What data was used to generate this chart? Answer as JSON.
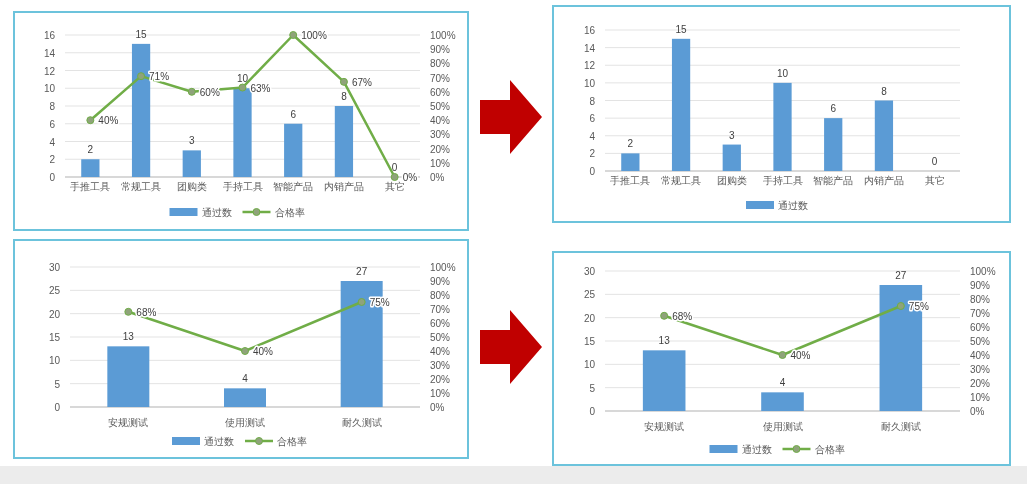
{
  "chart_data": [
    {
      "type": "bar",
      "categories": [
        "手推工具",
        "常规工具",
        "团购类",
        "手持工具",
        "智能产品",
        "内销产品",
        "其它"
      ],
      "ylim": [
        0,
        16
      ],
      "yticks": [
        0,
        2,
        4,
        6,
        8,
        10,
        12,
        14,
        16
      ],
      "y2lim": [
        0,
        100
      ],
      "y2ticks": [
        {
          "value": 0,
          "label": "0%"
        },
        {
          "value": 10,
          "label": "10%"
        },
        {
          "value": 20,
          "label": "20%"
        },
        {
          "value": 30,
          "label": "30%"
        },
        {
          "value": 40,
          "label": "40%"
        },
        {
          "value": 50,
          "label": "50%"
        },
        {
          "value": 60,
          "label": "60%"
        },
        {
          "value": 70,
          "label": "70%"
        },
        {
          "value": 80,
          "label": "80%"
        },
        {
          "value": 90,
          "label": "90%"
        },
        {
          "value": 100,
          "label": "100%"
        }
      ],
      "grid": "y",
      "legend": "bottom",
      "data_labels": true,
      "marker": "circle",
      "series": [
        {
          "name": "通过数",
          "color": "#5b9bd5",
          "values": [
            2,
            15,
            3,
            10,
            6,
            8,
            0
          ]
        },
        {
          "name": "合格率",
          "type": "line",
          "axis": "y2",
          "color": "#70ad47",
          "values": [
            40,
            71,
            60,
            63,
            100,
            67,
            0
          ],
          "value_labels": [
            "40%",
            "71%",
            "60%",
            "63%",
            "100%",
            "67%",
            "0%"
          ]
        }
      ]
    },
    {
      "type": "bar",
      "categories": [
        "手推工具",
        "常规工具",
        "团购类",
        "手持工具",
        "智能产品",
        "内销产品",
        "其它"
      ],
      "ylim": [
        0,
        16
      ],
      "yticks": [
        0,
        2,
        4,
        6,
        8,
        10,
        12,
        14,
        16
      ],
      "grid": "y",
      "legend": "bottom",
      "data_labels": true,
      "series": [
        {
          "name": "通过数",
          "color": "#5b9bd5",
          "values": [
            2,
            15,
            3,
            10,
            6,
            8,
            0
          ]
        }
      ]
    },
    {
      "type": "bar",
      "categories": [
        "安规测试",
        "使用测试",
        "耐久测试"
      ],
      "ylim": [
        0,
        30
      ],
      "yticks": [
        0,
        5,
        10,
        15,
        20,
        25,
        30
      ],
      "y2lim": [
        0,
        100
      ],
      "y2ticks": [
        {
          "value": 0,
          "label": "0%"
        },
        {
          "value": 10,
          "label": "10%"
        },
        {
          "value": 20,
          "label": "20%"
        },
        {
          "value": 30,
          "label": "30%"
        },
        {
          "value": 40,
          "label": "40%"
        },
        {
          "value": 50,
          "label": "50%"
        },
        {
          "value": 60,
          "label": "60%"
        },
        {
          "value": 70,
          "label": "70%"
        },
        {
          "value": 80,
          "label": "80%"
        },
        {
          "value": 90,
          "label": "90%"
        },
        {
          "value": 100,
          "label": "100%"
        }
      ],
      "grid": "y",
      "legend": "bottom",
      "data_labels": true,
      "marker": "circle",
      "series": [
        {
          "name": "通过数",
          "color": "#5b9bd5",
          "values": [
            13,
            4,
            27
          ]
        },
        {
          "name": "合格率",
          "type": "line",
          "axis": "y2",
          "color": "#70ad47",
          "values": [
            68,
            40,
            75
          ],
          "value_labels": [
            "68%",
            "40%",
            "75%"
          ]
        }
      ]
    },
    {
      "type": "bar",
      "categories": [
        "安规测试",
        "使用测试",
        "耐久测试"
      ],
      "ylim": [
        0,
        30
      ],
      "yticks": [
        0,
        5,
        10,
        15,
        20,
        25,
        30
      ],
      "y2lim": [
        0,
        100
      ],
      "y2ticks": [
        {
          "value": 0,
          "label": "0%"
        },
        {
          "value": 10,
          "label": "10%"
        },
        {
          "value": 20,
          "label": "20%"
        },
        {
          "value": 30,
          "label": "30%"
        },
        {
          "value": 40,
          "label": "40%"
        },
        {
          "value": 50,
          "label": "50%"
        },
        {
          "value": 60,
          "label": "60%"
        },
        {
          "value": 70,
          "label": "70%"
        },
        {
          "value": 80,
          "label": "80%"
        },
        {
          "value": 90,
          "label": "90%"
        },
        {
          "value": 100,
          "label": "100%"
        }
      ],
      "grid": "y",
      "legend": "bottom",
      "data_labels": true,
      "marker": "circle",
      "series": [
        {
          "name": "通过数",
          "color": "#5b9bd5",
          "values": [
            13,
            4,
            27
          ]
        },
        {
          "name": "合格率",
          "type": "line",
          "axis": "y2",
          "color": "#70ad47",
          "values": [
            68,
            40,
            75
          ],
          "value_labels": [
            "68%",
            "40%",
            "75%"
          ]
        }
      ]
    }
  ]
}
